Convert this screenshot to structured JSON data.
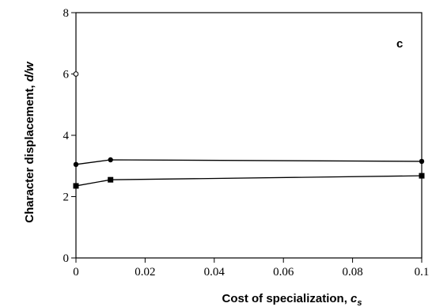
{
  "chart_data": {
    "type": "line",
    "panel_label": "c",
    "xlabel": "Cost of specialization, ",
    "xlabel_var": "c",
    "xlabel_sub": "s",
    "ylabel": "Character displacement, ",
    "ylabel_var": "d/w",
    "xlim": [
      0,
      0.1
    ],
    "ylim": [
      0,
      8
    ],
    "x_ticks": [
      0,
      0.02,
      0.04,
      0.06,
      0.08,
      0.1
    ],
    "y_ticks": [
      0,
      2,
      4,
      6,
      8
    ],
    "series": [
      {
        "marker": "circle",
        "connected": true,
        "x": [
          0,
          0.01,
          0.1
        ],
        "y": [
          3.05,
          3.2,
          3.15
        ]
      },
      {
        "marker": "square",
        "connected": true,
        "x": [
          0,
          0.01,
          0.1
        ],
        "y": [
          2.35,
          2.55,
          2.68
        ]
      },
      {
        "marker": "open-circle",
        "connected": false,
        "x": [
          0
        ],
        "y": [
          6.0
        ]
      }
    ],
    "grid": false,
    "legend": "none"
  }
}
